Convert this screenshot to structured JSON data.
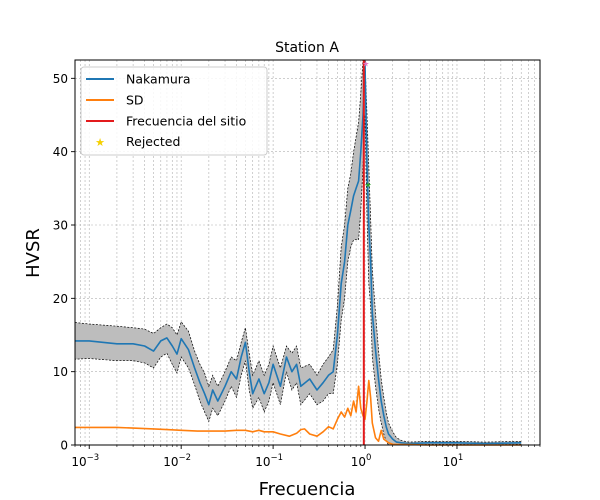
{
  "chart_data": {
    "type": "line",
    "title": "Station A",
    "xlabel": "Frecuencia",
    "ylabel": "HVSR",
    "xscale": "log",
    "xlim": [
      0.0007,
      80
    ],
    "ylim": [
      0,
      52.5
    ],
    "grid": true,
    "legend_placement": "top-left",
    "x_ticks": [
      {
        "value": 0.001,
        "label": "10",
        "sup": "−3"
      },
      {
        "value": 0.01,
        "label": "10",
        "sup": "−2"
      },
      {
        "value": 0.1,
        "label": "10",
        "sup": "−1"
      },
      {
        "value": 1,
        "label": "10",
        "sup": "0"
      },
      {
        "value": 10,
        "label": "10",
        "sup": "1"
      }
    ],
    "y_ticks": [
      0,
      10,
      20,
      30,
      40,
      50
    ],
    "site_frequency": 0.97,
    "legend": [
      {
        "label": "Nakamura",
        "kind": "line",
        "color": "#1f77b4"
      },
      {
        "label": "SD",
        "kind": "line",
        "color": "#ff7f0e"
      },
      {
        "label": "Frecuencia del sitio",
        "kind": "line",
        "color": "#e31a1c"
      },
      {
        "label": "Rejected",
        "kind": "star",
        "color": "#f5d000"
      }
    ],
    "series": [
      {
        "name": "Nakamura",
        "color": "#1f77b4",
        "x": [
          0.0007,
          0.001,
          0.002,
          0.003,
          0.004,
          0.005,
          0.006,
          0.007,
          0.008,
          0.009,
          0.01,
          0.012,
          0.014,
          0.016,
          0.018,
          0.02,
          0.022,
          0.025,
          0.03,
          0.035,
          0.04,
          0.045,
          0.05,
          0.055,
          0.06,
          0.07,
          0.08,
          0.09,
          0.1,
          0.12,
          0.14,
          0.16,
          0.18,
          0.2,
          0.25,
          0.3,
          0.35,
          0.4,
          0.45,
          0.5,
          0.55,
          0.6,
          0.65,
          0.7,
          0.75,
          0.8,
          0.85,
          0.9,
          0.95,
          1.0,
          1.05,
          1.1,
          1.15,
          1.2,
          1.3,
          1.4,
          1.5,
          1.6,
          1.7,
          1.8,
          2.0,
          2.2,
          2.5,
          3,
          5,
          10,
          20,
          50
        ],
        "values": [
          14.2,
          14.2,
          13.8,
          13.8,
          13.5,
          12.8,
          14.2,
          14.6,
          13.5,
          12.4,
          14.5,
          13.0,
          10.5,
          8.5,
          7.0,
          5.5,
          7.5,
          6.0,
          8.0,
          10.0,
          9.0,
          12.0,
          14.0,
          10.0,
          7.0,
          9.0,
          7.0,
          8.5,
          11.0,
          8.0,
          12.0,
          10.0,
          11.0,
          8.0,
          9.0,
          7.5,
          8.5,
          9.5,
          10.0,
          15.0,
          22.0,
          25.0,
          30.0,
          32.0,
          34.0,
          35.0,
          36.0,
          40.0,
          45.0,
          52.0,
          38.0,
          30.0,
          25.0,
          18.0,
          13.0,
          9.0,
          6.0,
          4.0,
          2.5,
          1.5,
          0.8,
          0.4,
          0.3,
          0.2,
          0.3,
          0.3,
          0.2,
          0.3
        ]
      },
      {
        "name": "SD",
        "color": "#ff7f0e",
        "x": [
          0.0007,
          0.001,
          0.002,
          0.003,
          0.005,
          0.007,
          0.01,
          0.015,
          0.02,
          0.03,
          0.04,
          0.05,
          0.06,
          0.07,
          0.08,
          0.1,
          0.12,
          0.15,
          0.18,
          0.2,
          0.22,
          0.25,
          0.3,
          0.35,
          0.4,
          0.45,
          0.5,
          0.55,
          0.6,
          0.65,
          0.7,
          0.75,
          0.8,
          0.85,
          0.9,
          0.95,
          1.0,
          1.05,
          1.1,
          1.15,
          1.2,
          1.3,
          1.4,
          1.5,
          1.6,
          1.8,
          2.0,
          2.5,
          3,
          5,
          10,
          20,
          50
        ],
        "values": [
          2.4,
          2.4,
          2.4,
          2.3,
          2.2,
          2.1,
          2.0,
          1.9,
          1.9,
          1.9,
          2.0,
          2.0,
          1.8,
          2.0,
          1.8,
          1.8,
          1.5,
          1.2,
          1.6,
          2.1,
          2.2,
          1.5,
          1.2,
          1.8,
          2.5,
          2.2,
          3.5,
          4.5,
          3.8,
          5.0,
          4.0,
          6.0,
          4.5,
          8.0,
          5.0,
          4.0,
          3.5,
          6.0,
          8.8,
          6.5,
          3.0,
          1.0,
          0.5,
          2.0,
          0.8,
          0.3,
          0.1,
          0.05,
          0.05,
          0.0,
          0.0,
          0.0,
          0.0
        ]
      }
    ],
    "band": {
      "color": "#bdbdbd",
      "x": [
        0.0007,
        0.001,
        0.002,
        0.003,
        0.004,
        0.005,
        0.006,
        0.007,
        0.008,
        0.009,
        0.01,
        0.012,
        0.014,
        0.016,
        0.018,
        0.02,
        0.022,
        0.025,
        0.03,
        0.035,
        0.04,
        0.045,
        0.05,
        0.055,
        0.06,
        0.07,
        0.08,
        0.09,
        0.1,
        0.12,
        0.14,
        0.16,
        0.18,
        0.2,
        0.25,
        0.3,
        0.35,
        0.4,
        0.45,
        0.5,
        0.55,
        0.6,
        0.65,
        0.7,
        0.75,
        0.8,
        0.85,
        0.9,
        0.95,
        1.0,
        1.05,
        1.1,
        1.15,
        1.2,
        1.3,
        1.4,
        1.5,
        1.6,
        1.7,
        1.8,
        2.0,
        2.2,
        2.5,
        3,
        5,
        10,
        20,
        50
      ],
      "upper": [
        16.7,
        16.5,
        16.2,
        16.0,
        15.8,
        15.2,
        16.0,
        16.5,
        16.0,
        15.0,
        16.8,
        15.5,
        12.8,
        11.0,
        9.8,
        8.0,
        9.5,
        8.0,
        10.0,
        12.0,
        11.5,
        14.0,
        16.0,
        12.5,
        9.5,
        11.5,
        9.5,
        11.0,
        13.5,
        10.5,
        13.5,
        12.5,
        13.5,
        10.5,
        11.0,
        9.5,
        11.0,
        12.0,
        13.0,
        19.0,
        27.0,
        30.0,
        35.0,
        37.0,
        40.0,
        42.0,
        44.0,
        48.0,
        52.5,
        52.5,
        45.0,
        38.0,
        31.0,
        24.0,
        18.0,
        13.0,
        9.0,
        6.5,
        4.5,
        3.0,
        1.8,
        1.0,
        0.6,
        0.4,
        0.5,
        0.5,
        0.4,
        0.5
      ],
      "lower": [
        11.7,
        11.8,
        11.5,
        11.5,
        11.2,
        10.5,
        12.0,
        12.5,
        11.0,
        9.8,
        12.0,
        10.5,
        8.2,
        6.0,
        4.5,
        3.2,
        5.0,
        4.0,
        6.0,
        8.0,
        6.5,
        9.5,
        11.5,
        7.5,
        5.0,
        6.5,
        4.5,
        6.0,
        8.5,
        5.5,
        10.0,
        7.5,
        8.5,
        5.5,
        7.0,
        5.5,
        6.0,
        7.0,
        7.0,
        11.0,
        17.0,
        20.0,
        25.0,
        27.0,
        28.0,
        28.0,
        28.0,
        32.0,
        38.0,
        45.0,
        31.0,
        22.0,
        19.0,
        12.0,
        8.0,
        5.0,
        3.0,
        1.5,
        0.5,
        0.0,
        0.0,
        0.0,
        0.0,
        0.0,
        0.1,
        0.1,
        0.0,
        0.1
      ]
    },
    "rejected_points": [
      {
        "x": 1.02,
        "y": 52.0,
        "color": "#e377c2"
      },
      {
        "x": 1.08,
        "y": 35.5,
        "color": "#2ca02c"
      }
    ]
  }
}
